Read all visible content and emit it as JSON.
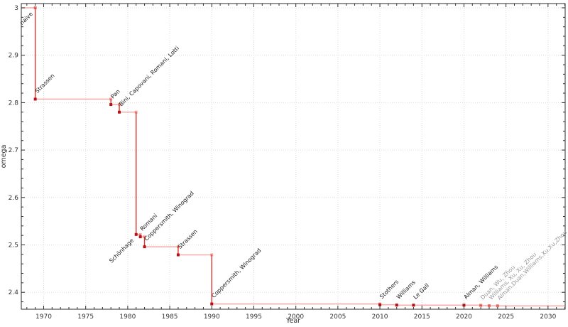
{
  "chart_data": {
    "type": "line",
    "style": "step-post",
    "title": "",
    "xlabel": "Year",
    "ylabel": "omega",
    "xlim": [
      1967.34,
      2032.04
    ],
    "ylim": [
      2.3643,
      3.009
    ],
    "x_major_ticks": [
      1970,
      1975,
      1980,
      1985,
      1990,
      1995,
      2000,
      2005,
      2010,
      2015,
      2020,
      2025,
      2030
    ],
    "x_minor_step": 1,
    "y_major_ticks": [
      2.4,
      2.5,
      2.6,
      2.7,
      2.8,
      2.9,
      3.0
    ],
    "y_minor_step": 0.02,
    "grid": "dotted major both axes",
    "legend": "none",
    "points": [
      {
        "year": 1969,
        "omega": 3.0,
        "label": "naive",
        "label_placement": "below-left",
        "marker": "pale",
        "label_style": "dark"
      },
      {
        "year": 1969,
        "omega": 2.8074,
        "label": "Strassen",
        "label_placement": "above-right",
        "marker": "solid",
        "label_style": "dark"
      },
      {
        "year": 1978,
        "omega": 2.796,
        "label": "Pan",
        "label_placement": "above-right",
        "marker": "solid",
        "label_style": "dark"
      },
      {
        "year": 1979,
        "omega": 2.78,
        "label": "Bini, Capovani, Romani, Lotti",
        "label_placement": "above-right",
        "marker": "solid",
        "label_style": "dark"
      },
      {
        "year": 1981,
        "omega": 2.522,
        "label": "Schönhage",
        "label_placement": "below-left",
        "marker": "solid",
        "label_style": "dark"
      },
      {
        "year": 1981.5,
        "omega": 2.517,
        "label": "Romani",
        "label_placement": "above-right",
        "marker": "solid",
        "label_style": "dark"
      },
      {
        "year": 1982,
        "omega": 2.496,
        "label": "Coppersmith, Winograd",
        "label_placement": "above-right",
        "marker": "solid",
        "label_style": "dark"
      },
      {
        "year": 1986,
        "omega": 2.479,
        "label": "Strassen",
        "label_placement": "above-right",
        "marker": "solid",
        "label_style": "dark"
      },
      {
        "year": 1990,
        "omega": 2.3755,
        "label": "Coppersmith, Winograd",
        "label_placement": "above-right",
        "marker": "solid",
        "label_style": "dark"
      },
      {
        "year": 2010,
        "omega": 2.3737,
        "label": "Stothers",
        "label_placement": "above-right",
        "marker": "solid",
        "label_style": "dark"
      },
      {
        "year": 2012,
        "omega": 2.3729,
        "label": "Williams",
        "label_placement": "above-right",
        "marker": "solid",
        "label_style": "dark"
      },
      {
        "year": 2014,
        "omega": 2.3728639,
        "label": "Le Gall",
        "label_placement": "above-right",
        "marker": "solid",
        "label_style": "dark"
      },
      {
        "year": 2020,
        "omega": 2.3728596,
        "label": "Alman, Williams",
        "label_placement": "above-right",
        "marker": "solid",
        "label_style": "dark"
      },
      {
        "year": 2022,
        "omega": 2.371866,
        "label": "Duan, Wu, Zhou",
        "label_placement": "above-right",
        "marker": "pale",
        "label_style": "gray"
      },
      {
        "year": 2023,
        "omega": 2.371552,
        "label": "Williams, Xu, Xu, Zhou",
        "label_placement": "above-right",
        "marker": "pale",
        "label_style": "gray"
      },
      {
        "year": 2024,
        "omega": 2.371339,
        "label": "Alman,Duan,Williams,Xu,Xu,Zhou",
        "label_placement": "above-right",
        "marker": "pale",
        "label_style": "gray"
      }
    ],
    "colors": {
      "line_vertical": "#e0322b",
      "line_horizontal": "#e0322b",
      "line_horizontal_opacity": 0.38,
      "marker_solid": "#b41217",
      "marker_pale": "#e0322b",
      "marker_pale_opacity": 0.42,
      "label_dark": "#1a1a1a",
      "label_gray": "#999999",
      "grid": "#dcdcdc",
      "spine": "#2b2b2b",
      "tick": "#2b2b2b",
      "tick_label": "#333333",
      "background": "#ffffff"
    }
  }
}
